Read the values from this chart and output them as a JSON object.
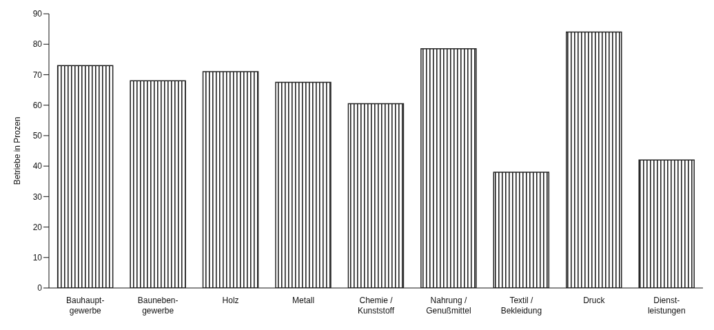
{
  "chart_data": {
    "type": "bar",
    "ylabel": "Betriebe in Prozen",
    "categories": [
      "Bauhaupt-\ngewerbe",
      "Bauneben-\ngewerbe",
      "Holz",
      "Metall",
      "Chemie /\nKunststoff",
      "Nahrung /\nGenußmittel",
      "Textil /\nBekleidung",
      "Druck",
      "Dienst-\nleistungen"
    ],
    "values": [
      73,
      68,
      71,
      67.5,
      60.5,
      78.5,
      38,
      84,
      42
    ],
    "color": "#222222",
    "ylim": [
      0,
      90
    ],
    "yticks": [
      0,
      10,
      20,
      30,
      40,
      50,
      60,
      70,
      80,
      90
    ],
    "grid": false
  }
}
